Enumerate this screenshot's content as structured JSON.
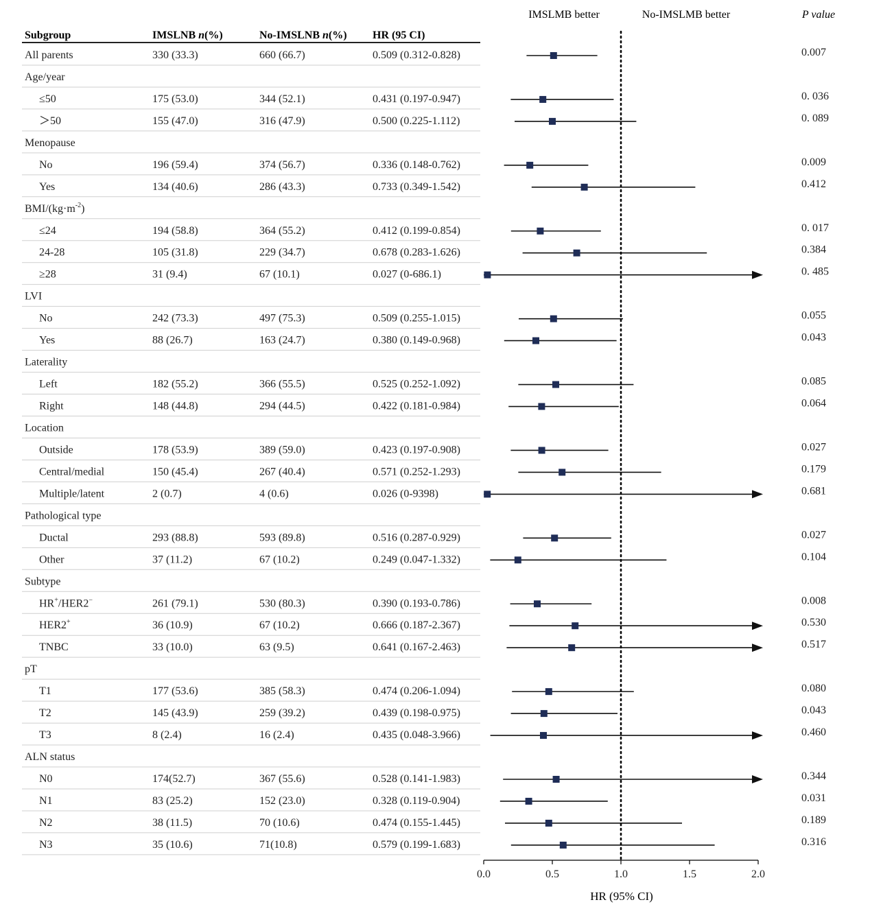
{
  "header": {
    "col_subgroup": "Subgroup",
    "col_imslnb": "IMSLNB n(%)",
    "col_no_imslnb": "No-IMSLNB n(%)",
    "col_hr": "HR (95 CI)",
    "better_left": "IMSLMB better",
    "better_right": "No-IMSLMB better",
    "p_value": "P value"
  },
  "chart_data": {
    "type": "forest",
    "xlabel": "HR (95% CI)",
    "xlim": [
      0.0,
      2.0
    ],
    "x_ticks": [
      "0.0",
      "0.5",
      "1.0",
      "1.5",
      "2.0"
    ],
    "reference_line": 1.0,
    "rows": [
      {
        "label": "All parents",
        "group": true,
        "imslnb": "330 (33.3)",
        "no_imslnb": "660 (66.7)",
        "hr_text": "0.509 (0.312-0.828)",
        "hr": 0.509,
        "lo": 0.312,
        "hi": 0.828,
        "arrow": false,
        "p": "0.007"
      },
      {
        "label": "Age/year",
        "header": true
      },
      {
        "label": "≤50",
        "imslnb": "175 (53.0)",
        "no_imslnb": "344 (52.1)",
        "hr_text": "0.431 (0.197-0.947)",
        "hr": 0.431,
        "lo": 0.197,
        "hi": 0.947,
        "arrow": false,
        "p": "0. 036"
      },
      {
        "label": "＞50",
        "imslnb": "155 (47.0)",
        "no_imslnb": "316 (47.9)",
        "hr_text": "0.500 (0.225-1.112)",
        "hr": 0.5,
        "lo": 0.225,
        "hi": 1.112,
        "arrow": false,
        "p": "0. 089"
      },
      {
        "label": "Menopause",
        "header": true
      },
      {
        "label": "No",
        "imslnb": "196 (59.4)",
        "no_imslnb": "374 (56.7)",
        "hr_text": "0.336 (0.148-0.762)",
        "hr": 0.336,
        "lo": 0.148,
        "hi": 0.762,
        "arrow": false,
        "p": "0.009"
      },
      {
        "label": "Yes",
        "imslnb": "134 (40.6)",
        "no_imslnb": "286 (43.3)",
        "hr_text": "0.733 (0.349-1.542)",
        "hr": 0.733,
        "lo": 0.349,
        "hi": 1.542,
        "arrow": false,
        "p": "0.412"
      },
      {
        "label": "BMI/(kg·m",
        "label_sup": "-2",
        "label_after": ")",
        "header": true
      },
      {
        "label": "≤24",
        "imslnb": "194 (58.8)",
        "no_imslnb": "364 (55.2)",
        "hr_text": "0.412 (0.199-0.854)",
        "hr": 0.412,
        "lo": 0.199,
        "hi": 0.854,
        "arrow": false,
        "p": "0. 017"
      },
      {
        "label": "24-28",
        "imslnb": "105 (31.8)",
        "no_imslnb": "229 (34.7)",
        "hr_text": "0.678 (0.283-1.626)",
        "hr": 0.678,
        "lo": 0.283,
        "hi": 1.626,
        "arrow": false,
        "p": "0.384"
      },
      {
        "label": "≥28",
        "imslnb": "31 (9.4)",
        "no_imslnb": "67 (10.1)",
        "hr_text": "0.027 (0-686.1)",
        "hr": 0.027,
        "lo": 0,
        "hi": 686.1,
        "arrow": true,
        "p": "0. 485"
      },
      {
        "label": "LVI",
        "header": true
      },
      {
        "label": "No",
        "imslnb": "242 (73.3)",
        "no_imslnb": "497 (75.3)",
        "hr_text": "0.509 (0.255-1.015)",
        "hr": 0.509,
        "lo": 0.255,
        "hi": 1.015,
        "arrow": false,
        "p": "0.055"
      },
      {
        "label": "Yes",
        "imslnb": "88 (26.7)",
        "no_imslnb": "163 (24.7)",
        "hr_text": "0.380 (0.149-0.968)",
        "hr": 0.38,
        "lo": 0.149,
        "hi": 0.968,
        "arrow": false,
        "p": "0.043"
      },
      {
        "label": "Laterality",
        "header": true
      },
      {
        "label": "Left",
        "imslnb": "182 (55.2)",
        "no_imslnb": "366 (55.5)",
        "hr_text": "0.525 (0.252-1.092)",
        "hr": 0.525,
        "lo": 0.252,
        "hi": 1.092,
        "arrow": false,
        "p": "0.085"
      },
      {
        "label": "Right",
        "imslnb": "148 (44.8)",
        "no_imslnb": "294 (44.5)",
        "hr_text": "0.422 (0.181-0.984)",
        "hr": 0.422,
        "lo": 0.181,
        "hi": 0.984,
        "arrow": false,
        "p": "0.064"
      },
      {
        "label": "Location",
        "header": true
      },
      {
        "label": "Outside",
        "imslnb": "178 (53.9)",
        "no_imslnb": "389 (59.0)",
        "hr_text": "0.423 (0.197-0.908)",
        "hr": 0.423,
        "lo": 0.197,
        "hi": 0.908,
        "arrow": false,
        "p": "0.027"
      },
      {
        "label": "Central/medial",
        "imslnb": "150 (45.4)",
        "no_imslnb": "267 (40.4)",
        "hr_text": "0.571 (0.252-1.293)",
        "hr": 0.571,
        "lo": 0.252,
        "hi": 1.293,
        "arrow": false,
        "p": "0.179"
      },
      {
        "label": "Multiple/latent",
        "imslnb": "2 (0.7)",
        "no_imslnb": "4 (0.6)",
        "hr_text": "0.026 (0-9398)",
        "hr": 0.026,
        "lo": 0,
        "hi": 9398,
        "arrow": true,
        "p": "0.681"
      },
      {
        "label": "Pathological type",
        "header": true
      },
      {
        "label": "Ductal",
        "imslnb": "293 (88.8)",
        "no_imslnb": "593 (89.8)",
        "hr_text": "0.516 (0.287-0.929)",
        "hr": 0.516,
        "lo": 0.287,
        "hi": 0.929,
        "arrow": false,
        "p": "0.027"
      },
      {
        "label": "Other",
        "imslnb": "37 (11.2)",
        "no_imslnb": "67 (10.2)",
        "hr_text": "0.249 (0.047-1.332)",
        "hr": 0.249,
        "lo": 0.047,
        "hi": 1.332,
        "arrow": false,
        "p": "0.104"
      },
      {
        "label": "Subtype",
        "header": true
      },
      {
        "label": "HR",
        "label_sup": "+",
        "label_after": "/HER2",
        "label_sup2": "−",
        "imslnb": "261 (79.1)",
        "no_imslnb": "530 (80.3)",
        "hr_text": "0.390 (0.193-0.786)",
        "hr": 0.39,
        "lo": 0.193,
        "hi": 0.786,
        "arrow": false,
        "p": "0.008"
      },
      {
        "label": "HER2",
        "label_sup": "+",
        "imslnb": "36 (10.9)",
        "no_imslnb": "67 (10.2)",
        "hr_text": "0.666 (0.187-2.367)",
        "hr": 0.666,
        "lo": 0.187,
        "hi": 2.367,
        "arrow": true,
        "p": "0.530"
      },
      {
        "label": "TNBC",
        "imslnb": "33 (10.0)",
        "no_imslnb": "63 (9.5)",
        "hr_text": "0.641 (0.167-2.463)",
        "hr": 0.641,
        "lo": 0.167,
        "hi": 2.463,
        "arrow": true,
        "p": "0.517"
      },
      {
        "label": "pT",
        "header": true
      },
      {
        "label": "T1",
        "imslnb": "177 (53.6)",
        "no_imslnb": "385 (58.3)",
        "hr_text": "0.474 (0.206-1.094)",
        "hr": 0.474,
        "lo": 0.206,
        "hi": 1.094,
        "arrow": false,
        "p": "0.080"
      },
      {
        "label": "T2",
        "imslnb": "145 (43.9)",
        "no_imslnb": "259 (39.2)",
        "hr_text": "0.439 (0.198-0.975)",
        "hr": 0.439,
        "lo": 0.198,
        "hi": 0.975,
        "arrow": false,
        "p": "0.043"
      },
      {
        "label": "T3",
        "imslnb": "8 (2.4)",
        "no_imslnb": "16 (2.4)",
        "hr_text": "0.435 (0.048-3.966)",
        "hr": 0.435,
        "lo": 0.048,
        "hi": 3.966,
        "arrow": true,
        "p": "0.460"
      },
      {
        "label": "ALN status",
        "header": true
      },
      {
        "label": "N0",
        "imslnb": "174(52.7)",
        "no_imslnb": "367 (55.6)",
        "hr_text": "0.528 (0.141-1.983)",
        "hr": 0.528,
        "lo": 0.141,
        "hi": 1.983,
        "arrow": true,
        "p": "0.344"
      },
      {
        "label": "N1",
        "imslnb": "83 (25.2)",
        "no_imslnb": "152 (23.0)",
        "hr_text": "0.328 (0.119-0.904)",
        "hr": 0.328,
        "lo": 0.119,
        "hi": 0.904,
        "arrow": false,
        "p": "0.031"
      },
      {
        "label": "N2",
        "imslnb": "38 (11.5)",
        "no_imslnb": "70 (10.6)",
        "hr_text": "0.474 (0.155-1.445)",
        "hr": 0.474,
        "lo": 0.155,
        "hi": 1.445,
        "arrow": false,
        "p": "0.189"
      },
      {
        "label": "N3",
        "imslnb": "35 (10.6)",
        "no_imslnb": "71(10.8)",
        "hr_text": "0.579 (0.199-1.683)",
        "hr": 0.579,
        "lo": 0.199,
        "hi": 1.683,
        "arrow": false,
        "p": "0.316"
      }
    ]
  },
  "colors": {
    "marker": "#1f2d57",
    "line": "#111111",
    "rule": "#cfcfcf",
    "text": "#222222"
  }
}
